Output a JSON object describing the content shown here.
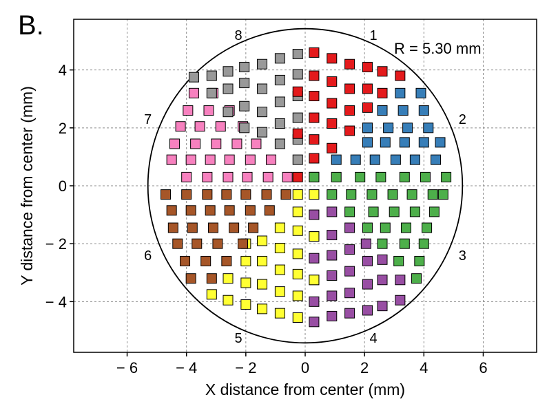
{
  "chart_data": {
    "type": "scatter",
    "panel_label": "B.",
    "title": "",
    "xlabel": "X distance from center (mm)",
    "ylabel": "Y distance from center (mm)",
    "xlim": [
      -7.8,
      7.8
    ],
    "ylim": [
      -5.75,
      5.75
    ],
    "xticks": [
      -6,
      -4,
      -2,
      0,
      2,
      4,
      6
    ],
    "yticks": [
      -4,
      -2,
      0,
      2,
      4
    ],
    "x_tick_labels": [
      "− 6",
      "− 4",
      "− 2",
      "0",
      "2",
      "4",
      "6"
    ],
    "y_tick_labels": [
      "− 4",
      "− 2",
      "0",
      "2",
      "4"
    ],
    "grid": true,
    "radius_value": 5.3,
    "radius_label": "R =  5.30 mm",
    "sector_labels": [
      {
        "text": "1",
        "x": 2.3,
        "y": 5.2
      },
      {
        "text": "2",
        "x": 5.3,
        "y": 2.3
      },
      {
        "text": "3",
        "x": 5.3,
        "y": -2.4
      },
      {
        "text": "4",
        "x": 2.3,
        "y": -5.25
      },
      {
        "text": "5",
        "x": -2.25,
        "y": -5.25
      },
      {
        "text": "6",
        "x": -5.3,
        "y": -2.4
      },
      {
        "text": "7",
        "x": -5.3,
        "y": 2.3
      },
      {
        "text": "8",
        "x": -2.25,
        "y": 5.2
      }
    ],
    "series": [
      {
        "sector": 1,
        "color": "#e41a1c",
        "points": [
          [
            0.3,
            0.3
          ],
          [
            0.3,
            0.95
          ],
          [
            0.3,
            1.6
          ],
          [
            0.3,
            2.35
          ],
          [
            0.3,
            3.1
          ],
          [
            0.3,
            3.8
          ],
          [
            0.3,
            4.6
          ],
          [
            0.9,
            1.3
          ],
          [
            0.9,
            2.15
          ],
          [
            0.9,
            2.85
          ],
          [
            0.9,
            3.6
          ],
          [
            0.9,
            4.4
          ],
          [
            1.5,
            1.9
          ],
          [
            1.5,
            2.6
          ],
          [
            1.5,
            3.35
          ],
          [
            1.5,
            4.2
          ],
          [
            2.1,
            2.0
          ],
          [
            2.1,
            2.7
          ],
          [
            2.1,
            3.35
          ],
          [
            2.1,
            4.1
          ],
          [
            2.6,
            2.6
          ],
          [
            2.6,
            3.2
          ],
          [
            2.6,
            3.95
          ],
          [
            3.2,
            3.8
          ]
        ]
      },
      {
        "sector": 2,
        "color": "#377eb8",
        "points": [
          [
            1.05,
            0.9
          ],
          [
            1.7,
            0.9
          ],
          [
            2.35,
            0.9
          ],
          [
            3.05,
            0.9
          ],
          [
            3.7,
            0.9
          ],
          [
            4.4,
            0.9
          ],
          [
            2.1,
            1.5
          ],
          [
            2.7,
            1.5
          ],
          [
            3.35,
            1.5
          ],
          [
            4.0,
            1.5
          ],
          [
            4.55,
            1.5
          ],
          [
            2.1,
            2.0
          ],
          [
            2.8,
            2.0
          ],
          [
            3.45,
            2.0
          ],
          [
            4.15,
            2.0
          ],
          [
            2.6,
            2.6
          ],
          [
            3.3,
            2.6
          ],
          [
            4.0,
            2.6
          ],
          [
            3.2,
            3.2
          ],
          [
            3.9,
            3.2
          ]
        ]
      },
      {
        "sector": 3,
        "color": "#4daf4a",
        "points": [
          [
            0.3,
            0.3
          ],
          [
            1.05,
            0.3
          ],
          [
            1.85,
            0.3
          ],
          [
            2.55,
            0.3
          ],
          [
            3.35,
            0.3
          ],
          [
            4.05,
            0.3
          ],
          [
            4.75,
            0.3
          ],
          [
            0.9,
            -0.3
          ],
          [
            1.55,
            -0.3
          ],
          [
            2.25,
            -0.3
          ],
          [
            2.95,
            -0.3
          ],
          [
            3.6,
            -0.3
          ],
          [
            4.3,
            -0.3
          ],
          [
            4.65,
            -0.3
          ],
          [
            1.5,
            -0.9
          ],
          [
            2.3,
            -0.9
          ],
          [
            3.0,
            -0.9
          ],
          [
            3.7,
            -0.9
          ],
          [
            4.35,
            -0.9
          ],
          [
            2.1,
            -1.45
          ],
          [
            2.7,
            -1.45
          ],
          [
            3.4,
            -1.45
          ],
          [
            4.1,
            -1.45
          ],
          [
            2.6,
            -2.0
          ],
          [
            3.35,
            -2.0
          ],
          [
            4.0,
            -2.0
          ],
          [
            3.15,
            -2.6
          ],
          [
            3.85,
            -2.6
          ],
          [
            3.75,
            -3.2
          ]
        ]
      },
      {
        "sector": 4,
        "color": "#984ea3",
        "points": [
          [
            0.3,
            -1.0
          ],
          [
            0.3,
            -1.75
          ],
          [
            0.3,
            -2.5
          ],
          [
            0.3,
            -3.25
          ],
          [
            0.3,
            -4.0
          ],
          [
            0.3,
            -4.7
          ],
          [
            0.9,
            -0.9
          ],
          [
            0.9,
            -1.7
          ],
          [
            0.9,
            -2.4
          ],
          [
            0.9,
            -3.1
          ],
          [
            0.9,
            -3.8
          ],
          [
            0.9,
            -4.5
          ],
          [
            1.5,
            -1.45
          ],
          [
            1.5,
            -2.2
          ],
          [
            1.5,
            -2.95
          ],
          [
            1.5,
            -3.7
          ],
          [
            1.5,
            -4.4
          ],
          [
            2.05,
            -2.0
          ],
          [
            2.1,
            -2.6
          ],
          [
            2.1,
            -3.4
          ],
          [
            2.1,
            -4.3
          ],
          [
            2.6,
            -2.55
          ],
          [
            2.6,
            -3.25
          ],
          [
            2.6,
            -4.15
          ],
          [
            3.2,
            -3.25
          ],
          [
            3.2,
            -3.95
          ]
        ]
      },
      {
        "sector": 5,
        "color": "#ffff33",
        "points": [
          [
            -0.25,
            -0.3
          ],
          [
            -0.25,
            -0.9
          ],
          [
            0.3,
            -0.3
          ],
          [
            0.3,
            -1.75
          ],
          [
            0.3,
            -3.25
          ],
          [
            -0.25,
            -1.55
          ],
          [
            -0.25,
            -2.35
          ],
          [
            -0.25,
            -3.05
          ],
          [
            -0.25,
            -3.8
          ],
          [
            -0.25,
            -4.55
          ],
          [
            -0.85,
            -1.45
          ],
          [
            -0.85,
            -2.15
          ],
          [
            -0.85,
            -2.9
          ],
          [
            -0.85,
            -3.65
          ],
          [
            -0.85,
            -4.4
          ],
          [
            -1.45,
            -1.9
          ],
          [
            -1.45,
            -2.6
          ],
          [
            -1.45,
            -3.4
          ],
          [
            -1.45,
            -4.25
          ],
          [
            -2.0,
            -2.0
          ],
          [
            -2.0,
            -2.6
          ],
          [
            -2.0,
            -3.35
          ],
          [
            -2.0,
            -4.1
          ],
          [
            -2.6,
            -3.2
          ],
          [
            -2.6,
            -3.95
          ],
          [
            -3.15,
            -3.75
          ]
        ]
      },
      {
        "sector": 6,
        "color": "#a65628",
        "points": [
          [
            -4.7,
            -0.3
          ],
          [
            -4.0,
            -0.3
          ],
          [
            -3.3,
            -0.3
          ],
          [
            -2.65,
            -0.3
          ],
          [
            -2.0,
            -0.3
          ],
          [
            -1.3,
            -0.3
          ],
          [
            -0.65,
            -0.3
          ],
          [
            -4.5,
            -0.85
          ],
          [
            -3.85,
            -0.85
          ],
          [
            -3.2,
            -0.85
          ],
          [
            -2.55,
            -0.85
          ],
          [
            -1.85,
            -0.85
          ],
          [
            -1.2,
            -0.85
          ],
          [
            -4.45,
            -1.45
          ],
          [
            -3.8,
            -1.45
          ],
          [
            -3.1,
            -1.45
          ],
          [
            -2.4,
            -1.45
          ],
          [
            -1.75,
            -1.45
          ],
          [
            -4.3,
            -2.0
          ],
          [
            -3.65,
            -2.0
          ],
          [
            -2.95,
            -2.0
          ],
          [
            -2.1,
            -2.0
          ],
          [
            -4.05,
            -2.6
          ],
          [
            -3.35,
            -2.6
          ],
          [
            -2.65,
            -2.6
          ],
          [
            -3.85,
            -3.2
          ],
          [
            -3.15,
            -3.2
          ]
        ]
      },
      {
        "sector": 7,
        "color": "#f781bf",
        "points": [
          [
            -4.5,
            0.9
          ],
          [
            -3.85,
            0.9
          ],
          [
            -3.2,
            0.9
          ],
          [
            -2.55,
            0.9
          ],
          [
            -1.85,
            0.9
          ],
          [
            -1.15,
            0.9
          ],
          [
            -4.4,
            1.45
          ],
          [
            -3.7,
            1.45
          ],
          [
            -3.0,
            1.45
          ],
          [
            -2.3,
            1.45
          ],
          [
            -1.65,
            1.45
          ],
          [
            -4.2,
            2.05
          ],
          [
            -3.55,
            2.05
          ],
          [
            -2.85,
            2.05
          ],
          [
            -2.1,
            2.05
          ],
          [
            -3.95,
            2.6
          ],
          [
            -3.25,
            2.6
          ],
          [
            -2.55,
            2.6
          ],
          [
            -3.75,
            3.2
          ],
          [
            -3.1,
            3.2
          ],
          [
            -4.0,
            0.3
          ],
          [
            -3.3,
            0.3
          ],
          [
            -2.6,
            0.3
          ],
          [
            -1.95,
            0.3
          ],
          [
            -1.25,
            0.3
          ],
          [
            -0.6,
            0.3
          ]
        ]
      },
      {
        "sector": 8,
        "color": "#999999",
        "points": [
          [
            -0.25,
            0.9
          ],
          [
            -0.25,
            1.6
          ],
          [
            -0.25,
            2.35
          ],
          [
            -0.25,
            3.1
          ],
          [
            -0.25,
            3.85
          ],
          [
            -0.25,
            4.55
          ],
          [
            -0.85,
            1.45
          ],
          [
            -0.85,
            2.15
          ],
          [
            -0.85,
            2.9
          ],
          [
            -0.85,
            3.65
          ],
          [
            -0.85,
            4.4
          ],
          [
            -1.45,
            1.85
          ],
          [
            -1.45,
            2.55
          ],
          [
            -1.45,
            3.35
          ],
          [
            -1.45,
            4.2
          ],
          [
            -2.05,
            2.0
          ],
          [
            -2.05,
            2.75
          ],
          [
            -2.05,
            3.55
          ],
          [
            -2.05,
            4.1
          ],
          [
            -2.6,
            2.55
          ],
          [
            -2.6,
            3.35
          ],
          [
            -2.6,
            3.95
          ],
          [
            -3.15,
            3.2
          ],
          [
            -3.15,
            3.8
          ],
          [
            -3.75,
            3.75
          ]
        ]
      },
      {
        "sector": 1,
        "color": "#e41a1c",
        "points": [
          [
            -0.25,
            0.3
          ],
          [
            -0.25,
            1.8
          ],
          [
            -0.25,
            3.25
          ]
        ]
      }
    ]
  }
}
